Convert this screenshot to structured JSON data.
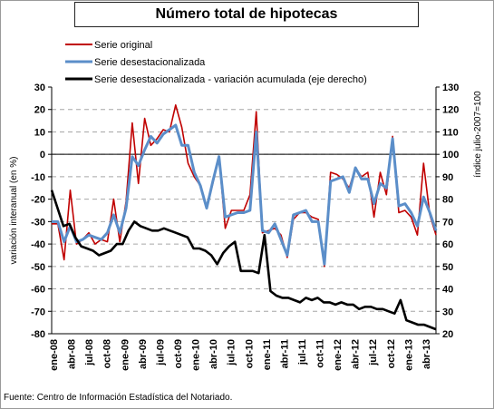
{
  "chart_data": {
    "type": "line",
    "title": "Número total de hipotecas",
    "ylabel_left": "variación interanual (en %)",
    "ylabel_right": "índice julio-2007=100",
    "ylim_left": [
      -80,
      30
    ],
    "ylim_right": [
      20,
      130
    ],
    "yticks_left": [
      "30",
      "20",
      "10",
      "0",
      "-10",
      "-20",
      "-30",
      "-40",
      "-50",
      "-60",
      "-70",
      "-80"
    ],
    "yticks_right": [
      "130",
      "120",
      "110",
      "100",
      "90",
      "80",
      "70",
      "60",
      "50",
      "40",
      "30",
      "20"
    ],
    "xtick_labels": [
      "ene-08",
      "abr-08",
      "jul-08",
      "oct-08",
      "ene-09",
      "abr-09",
      "jul-09",
      "oct-09",
      "ene-10",
      "abr-10",
      "jul-10",
      "oct-10",
      "ene-11",
      "abr-11",
      "jul-11",
      "oct-11",
      "ene-12",
      "abr-12",
      "jul-12",
      "oct-12",
      "ene-13",
      "abr-13"
    ],
    "legend": {
      "position": "top-left",
      "entries": [
        "Serie original",
        "Serie desestacionalizada",
        "Serie desestacionalizada - variación acumulada (eje derecho)"
      ]
    },
    "grid": true,
    "colors": {
      "original": "#c00000",
      "sa": "#5b8ec9",
      "cumulative": "#000000",
      "grid": "#a6a6a6"
    },
    "series": [
      {
        "name": "Serie original",
        "axis": "left",
        "values": [
          -31,
          -31,
          -47,
          -16,
          -40,
          -38,
          -35,
          -40,
          -38,
          -39,
          -20,
          -39,
          -21,
          14,
          -13,
          16,
          4,
          7,
          11,
          10,
          22,
          12,
          -4,
          -10,
          -14,
          -24,
          -13,
          -1,
          -33,
          -25,
          -25,
          -25,
          -18,
          19,
          -35,
          -34,
          -33,
          -36,
          -46,
          -29,
          -26,
          -26,
          -28,
          -29,
          -50,
          -8,
          -9,
          -11,
          -15,
          -6,
          -10,
          -8,
          -28,
          -8,
          -18,
          8,
          -26,
          -25,
          -28,
          -36,
          -4,
          -27,
          -36
        ]
      },
      {
        "name": "Serie desestacionalizada",
        "axis": "left",
        "values": [
          -30,
          -30,
          -39,
          -32,
          -39,
          -38,
          -36,
          -37,
          -38,
          -35,
          -27,
          -35,
          -24,
          -1,
          -5,
          2,
          8,
          5,
          9,
          11,
          13,
          4,
          4,
          -8,
          -14,
          -24,
          -12,
          -1,
          -28,
          -27,
          -26,
          -26,
          -25,
          10,
          -34,
          -35,
          -31,
          -38,
          -45,
          -27,
          -26,
          -25,
          -30,
          -30,
          -49,
          -12,
          -11,
          -10,
          -17,
          -6,
          -11,
          -11,
          -22,
          -13,
          -15,
          7,
          -23,
          -22,
          -26,
          -32,
          -19,
          -26,
          -34
        ]
      },
      {
        "name": "Serie desestacionalizada - variación acumulada (eje derecho)",
        "axis": "right",
        "values": [
          84,
          76,
          68,
          69,
          63,
          59,
          58,
          57,
          55,
          56,
          57,
          60,
          60,
          66,
          70,
          68,
          67,
          66,
          66,
          67,
          66,
          65,
          64,
          63,
          58,
          58,
          57,
          55,
          51,
          56,
          59,
          61,
          48,
          48,
          48,
          47,
          64,
          39,
          37,
          36,
          36,
          35,
          34,
          36,
          35,
          36,
          34,
          34,
          33,
          34,
          33,
          33,
          31,
          32,
          32,
          31,
          31,
          30,
          29,
          35,
          26,
          25,
          24,
          24,
          23,
          22
        ]
      }
    ]
  },
  "source": "Fuente: Centro de Información Estadística del Notariado."
}
